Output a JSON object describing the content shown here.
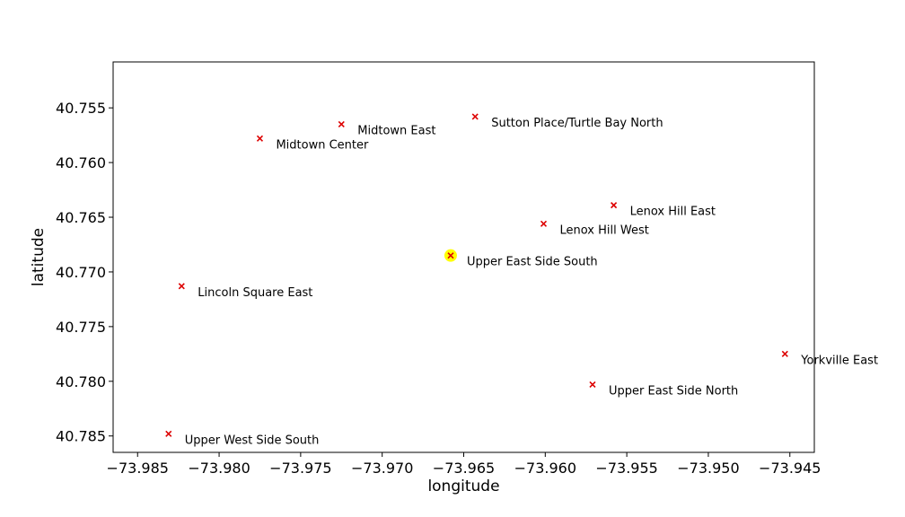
{
  "chart_data": {
    "type": "scatter",
    "xlabel": "longitude",
    "ylabel": "latitude",
    "xlim": [
      -73.9865,
      -73.9435
    ],
    "ylim": [
      40.7865,
      40.7508
    ],
    "y_inverted": true,
    "grid": false,
    "marker": "x",
    "marker_color": "#dd0000",
    "highlight_color": "#ffff00",
    "xticks": [
      -73.985,
      -73.98,
      -73.975,
      -73.97,
      -73.965,
      -73.96,
      -73.955,
      -73.95,
      -73.945
    ],
    "xtick_labels": [
      "−73.985",
      "−73.980",
      "−73.975",
      "−73.970",
      "−73.965",
      "−73.960",
      "−73.955",
      "−73.950",
      "−73.945"
    ],
    "yticks": [
      40.755,
      40.76,
      40.765,
      40.77,
      40.775,
      40.78,
      40.785
    ],
    "ytick_labels": [
      "40.755",
      "40.760",
      "40.765",
      "40.770",
      "40.775",
      "40.780",
      "40.785"
    ],
    "points": [
      {
        "label": "Midtown East",
        "x": -73.9725,
        "y": 40.7565
      },
      {
        "label": "Sutton Place/Turtle Bay North",
        "x": -73.9643,
        "y": 40.7558
      },
      {
        "label": "Midtown Center",
        "x": -73.9775,
        "y": 40.7578
      },
      {
        "label": "Lenox Hill East",
        "x": -73.9558,
        "y": 40.7639
      },
      {
        "label": "Lenox Hill West",
        "x": -73.9601,
        "y": 40.7656
      },
      {
        "label": "Upper East Side South",
        "x": -73.9658,
        "y": 40.7685,
        "highlighted": true
      },
      {
        "label": "Lincoln Square East",
        "x": -73.9823,
        "y": 40.7713
      },
      {
        "label": "Yorkville East",
        "x": -73.9453,
        "y": 40.7775
      },
      {
        "label": "Upper East Side North",
        "x": -73.9571,
        "y": 40.7803
      },
      {
        "label": "Upper West Side South",
        "x": -73.9831,
        "y": 40.7848
      }
    ]
  }
}
